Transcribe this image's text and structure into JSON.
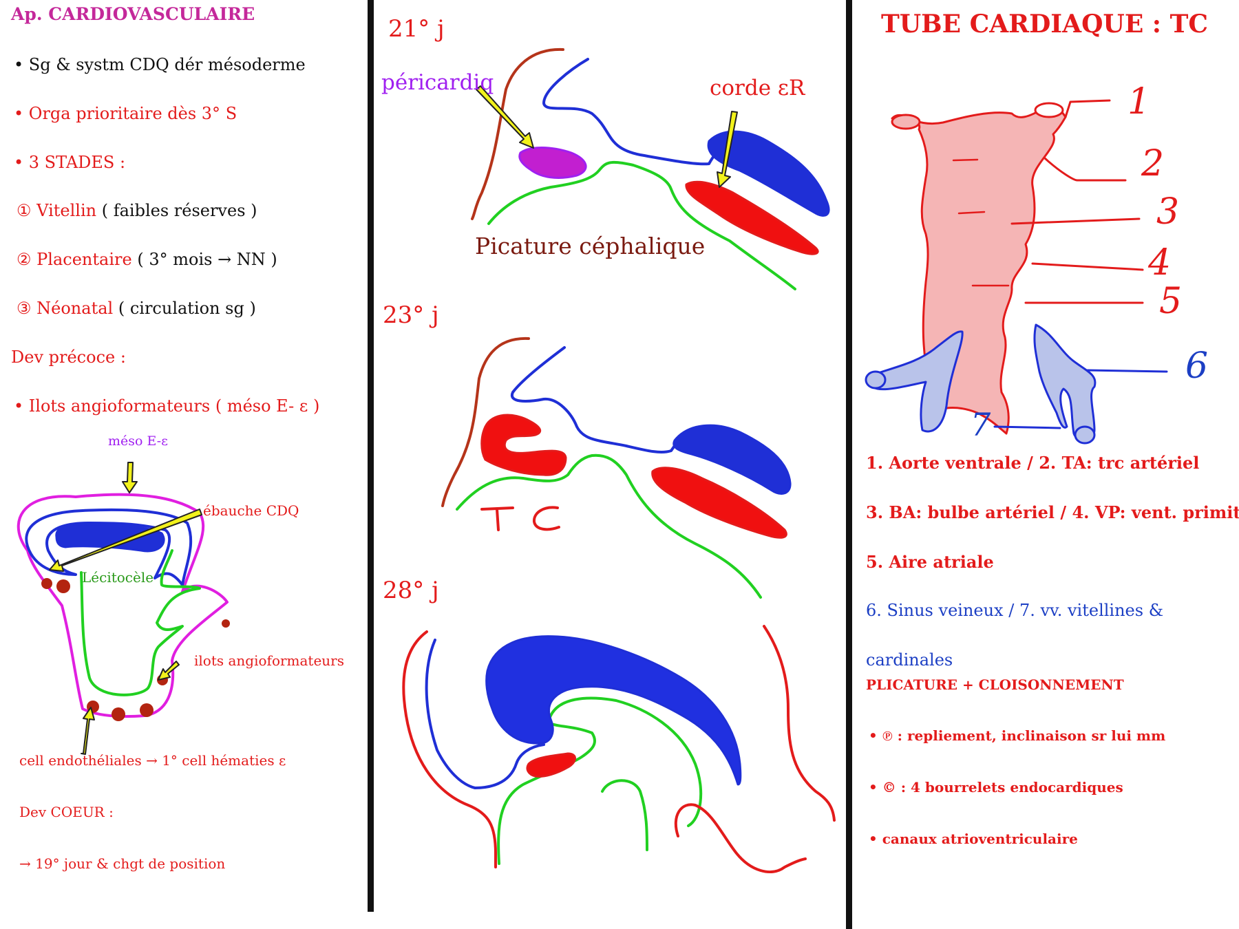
{
  "colors": {
    "red": "#e31b1b",
    "blue": "#1f2fd6",
    "green": "#21d021",
    "magenta": "#e01fe0",
    "purple": "#a020f0",
    "maroon": "#b5341a",
    "pink_fill": "#f5b5b5",
    "blue_fill": "#b9c3ea",
    "yellow": "#f2f21b",
    "dark_red_dot": "#b32410"
  },
  "left": {
    "title": "Ap. CARDIOVASCULAIRE",
    "bullet1": "• Sg & systm CDQ dér mésoderme",
    "bullet2": "• Orga prioritaire dès 3° S",
    "bullet3": "• 3 STADES :",
    "stage1_num": "①",
    "stage1_name": "Vitellin",
    "stage1_note": "( faibles réserves )",
    "stage2_num": "②",
    "stage2_name": "Placentaire",
    "stage2_note": "( 3° mois → NN )",
    "stage3_num": "③",
    "stage3_name": "Néonatal",
    "stage3_note": "( circulation sg )",
    "dev_precoce": "Dev précoce :",
    "ilots_bullet": "• Ilots angioformateurs ( méso E- ε )",
    "diagram": {
      "meso_label": "méso E-ε",
      "ebauche_label": "ébauche CDQ",
      "lecitocele_label": "Lécitocèle",
      "ilots_label": "ilots angioformateurs",
      "cell_label": "cell endothéliales → 1° cell hématies ε"
    },
    "dev_coeur": "Dev COEUR :",
    "jour19": "→ 19° jour & chgt de position"
  },
  "middle": {
    "day21": "21° j",
    "day23": "23° j",
    "day28": "28° j",
    "pericardiq": "péricardiq",
    "corde": "corde εR",
    "picature": "Picature céphalique",
    "tc": "TC"
  },
  "right": {
    "title": "TUBE CARDIAQUE : TC",
    "numbers": [
      "1",
      "2",
      "3",
      "4",
      "5",
      "6",
      "7"
    ],
    "legend1": "1. Aorte ventrale / 2. TA: trc artériel",
    "legend2": "3. BA: bulbe artériel / 4. VP: vent. primit",
    "legend3": "5. Aire atriale",
    "legend4": "6. Sinus veineux / 7. vv. vitellines &",
    "legend5": "cardinales",
    "plicature": "PLICATURE + CLOISONNEMENT",
    "p_bullet": "• ℗ : repliement, inclinaison sr lui mm",
    "c_bullet": "• © : 4 bourrelets endocardiques",
    "canaux": "• canaux atrioventriculaire"
  }
}
